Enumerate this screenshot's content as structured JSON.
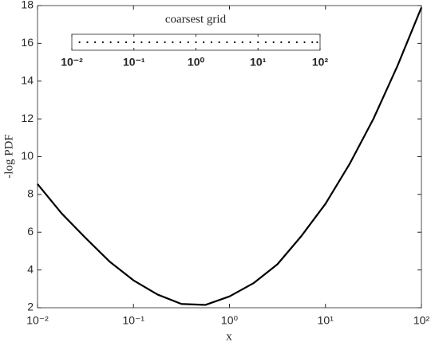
{
  "chart_data": [
    {
      "type": "line",
      "x_label": "x",
      "y_label": "-log PDF",
      "x": [
        0.01,
        0.0178,
        0.0316,
        0.0562,
        0.1,
        0.178,
        0.316,
        0.562,
        1,
        1.78,
        3.16,
        5.62,
        10,
        17.8,
        31.6,
        56.2,
        100
      ],
      "series": [
        {
          "color": "#000000",
          "values": [
            8.55,
            7.0,
            5.7,
            4.45,
            3.45,
            2.7,
            2.2,
            2.15,
            2.6,
            3.3,
            4.3,
            5.8,
            7.5,
            9.6,
            12.0,
            14.8,
            17.9
          ]
        }
      ],
      "xlog": true,
      "xlim": [
        0.01,
        100
      ],
      "xticks": [
        {
          "value": 0.01,
          "label": "10⁻²"
        },
        {
          "value": 0.1,
          "label": "10⁻¹"
        },
        {
          "value": 1,
          "label": "10⁰"
        },
        {
          "value": 10,
          "label": "10¹"
        },
        {
          "value": 100,
          "label": "10²"
        }
      ],
      "ylim": [
        2,
        18
      ],
      "yticks": [
        2,
        4,
        6,
        8,
        10,
        12,
        14,
        16,
        18
      ],
      "grid": false
    },
    {
      "type": "scatter",
      "title": "coarsest grid",
      "xlog": true,
      "xlim": [
        0.01,
        100
      ],
      "color": "#000000",
      "x": [
        0.0133,
        0.0178,
        0.0237,
        0.0316,
        0.0422,
        0.0562,
        0.075,
        0.1,
        0.133,
        0.178,
        0.237,
        0.316,
        0.422,
        0.562,
        0.75,
        1,
        1.33,
        1.78,
        2.37,
        3.16,
        4.22,
        5.62,
        7.5,
        10,
        13.3,
        17.8,
        23.7,
        31.6,
        42.2,
        56.2,
        75,
        90
      ],
      "xticks": [
        {
          "value": 0.01,
          "label": "10⁻²"
        },
        {
          "value": 0.1,
          "label": "10⁻¹"
        },
        {
          "value": 1,
          "label": "10⁰"
        },
        {
          "value": 10,
          "label": "10¹"
        },
        {
          "value": 100,
          "label": "10²"
        }
      ]
    }
  ]
}
